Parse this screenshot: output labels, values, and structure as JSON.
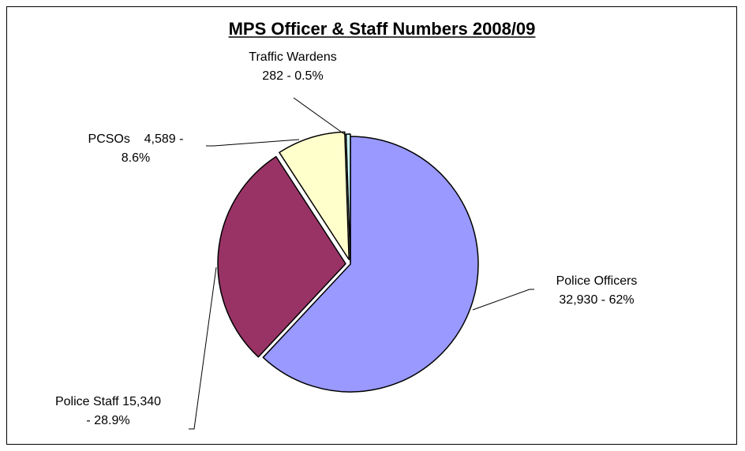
{
  "chart_data": {
    "type": "pie",
    "title": "MPS Officer & Staff Numbers 2008/09",
    "slices": [
      {
        "name": "Police Officers",
        "value": 32930,
        "percent": 62,
        "color": "#9999ff",
        "label_lines": [
          "Police Officers",
          "32,930 - 62%"
        ]
      },
      {
        "name": "Police Staff",
        "value": 15340,
        "percent": 28.9,
        "color": "#993366",
        "label_lines": [
          "Police Staff 15,340",
          "- 28.9%"
        ]
      },
      {
        "name": "PCSOs",
        "value": 4589,
        "percent": 8.6,
        "color": "#ffffcc",
        "label_lines": [
          "PCSOs    4,589 -",
          "8.6%"
        ]
      },
      {
        "name": "Traffic Wardens",
        "value": 282,
        "percent": 0.5,
        "color": "#ccffff",
        "label_lines": [
          "Traffic Wardens",
          "282 - 0.5%"
        ]
      }
    ]
  }
}
